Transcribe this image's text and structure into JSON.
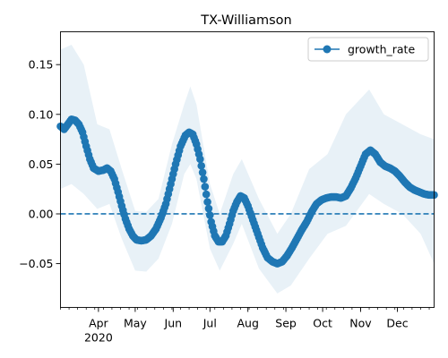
{
  "chart_data": {
    "type": "line",
    "title": "TX-Williamson",
    "xlabel": "",
    "ylabel": "",
    "x_start": "2020-03-01",
    "x_end": "2020-12-31",
    "xlim": [
      "2020-03-01",
      "2020-12-31"
    ],
    "ylim": [
      -0.094,
      0.183
    ],
    "x_ticks": [
      {
        "date": "2020-04-01",
        "label": "Apr",
        "sublabel": "2020"
      },
      {
        "date": "2020-05-01",
        "label": "May",
        "sublabel": ""
      },
      {
        "date": "2020-06-01",
        "label": "Jun",
        "sublabel": ""
      },
      {
        "date": "2020-07-01",
        "label": "Jul",
        "sublabel": ""
      },
      {
        "date": "2020-08-01",
        "label": "Aug",
        "sublabel": ""
      },
      {
        "date": "2020-09-01",
        "label": "Sep",
        "sublabel": ""
      },
      {
        "date": "2020-10-01",
        "label": "Oct",
        "sublabel": ""
      },
      {
        "date": "2020-11-01",
        "label": "Nov",
        "sublabel": ""
      },
      {
        "date": "2020-12-01",
        "label": "Dec",
        "sublabel": ""
      }
    ],
    "y_ticks": [
      {
        "value": 0.15,
        "label": "0.15"
      },
      {
        "value": 0.1,
        "label": "0.10"
      },
      {
        "value": 0.05,
        "label": "0.05"
      },
      {
        "value": 0.0,
        "label": "0.00"
      },
      {
        "value": -0.05,
        "label": "−0.05"
      }
    ],
    "reference_line": {
      "value": 0.0,
      "style": "dashed"
    },
    "legend": {
      "location": "top-right",
      "entries": [
        "growth_rate"
      ]
    },
    "series": [
      {
        "name": "growth_rate",
        "color": "#1f77b4",
        "marker": "circle",
        "points": [
          [
            "2020-03-01",
            0.088
          ],
          [
            "2020-03-04",
            0.085
          ],
          [
            "2020-03-07",
            0.09
          ],
          [
            "2020-03-10",
            0.095
          ],
          [
            "2020-03-13",
            0.094
          ],
          [
            "2020-03-16",
            0.09
          ],
          [
            "2020-03-19",
            0.082
          ],
          [
            "2020-03-22",
            0.068
          ],
          [
            "2020-03-25",
            0.055
          ],
          [
            "2020-03-28",
            0.046
          ],
          [
            "2020-04-01",
            0.043
          ],
          [
            "2020-04-05",
            0.044
          ],
          [
            "2020-04-08",
            0.046
          ],
          [
            "2020-04-11",
            0.043
          ],
          [
            "2020-04-14",
            0.035
          ],
          [
            "2020-04-17",
            0.022
          ],
          [
            "2020-04-20",
            0.008
          ],
          [
            "2020-04-23",
            -0.005
          ],
          [
            "2020-04-26",
            -0.015
          ],
          [
            "2020-04-29",
            -0.022
          ],
          [
            "2020-05-02",
            -0.026
          ],
          [
            "2020-05-06",
            -0.027
          ],
          [
            "2020-05-10",
            -0.026
          ],
          [
            "2020-05-14",
            -0.022
          ],
          [
            "2020-05-18",
            -0.015
          ],
          [
            "2020-05-22",
            -0.004
          ],
          [
            "2020-05-26",
            0.01
          ],
          [
            "2020-05-30",
            0.03
          ],
          [
            "2020-06-03",
            0.05
          ],
          [
            "2020-06-07",
            0.068
          ],
          [
            "2020-06-11",
            0.079
          ],
          [
            "2020-06-14",
            0.082
          ],
          [
            "2020-06-17",
            0.08
          ],
          [
            "2020-06-20",
            0.07
          ],
          [
            "2020-06-23",
            0.055
          ],
          [
            "2020-06-26",
            0.035
          ],
          [
            "2020-06-29",
            0.012
          ],
          [
            "2020-07-02",
            -0.008
          ],
          [
            "2020-07-05",
            -0.022
          ],
          [
            "2020-07-08",
            -0.028
          ],
          [
            "2020-07-11",
            -0.028
          ],
          [
            "2020-07-14",
            -0.022
          ],
          [
            "2020-07-17",
            -0.01
          ],
          [
            "2020-07-20",
            0.003
          ],
          [
            "2020-07-23",
            0.012
          ],
          [
            "2020-07-26",
            0.018
          ],
          [
            "2020-07-29",
            0.016
          ],
          [
            "2020-08-01",
            0.008
          ],
          [
            "2020-08-05",
            -0.006
          ],
          [
            "2020-08-09",
            -0.02
          ],
          [
            "2020-08-13",
            -0.034
          ],
          [
            "2020-08-17",
            -0.044
          ],
          [
            "2020-08-21",
            -0.048
          ],
          [
            "2020-08-25",
            -0.05
          ],
          [
            "2020-08-29",
            -0.048
          ],
          [
            "2020-09-02",
            -0.042
          ],
          [
            "2020-09-06",
            -0.034
          ],
          [
            "2020-09-10",
            -0.025
          ],
          [
            "2020-09-14",
            -0.016
          ],
          [
            "2020-09-18",
            -0.008
          ],
          [
            "2020-09-22",
            0.002
          ],
          [
            "2020-09-26",
            0.01
          ],
          [
            "2020-09-30",
            0.014
          ],
          [
            "2020-10-04",
            0.016
          ],
          [
            "2020-10-08",
            0.017
          ],
          [
            "2020-10-12",
            0.017
          ],
          [
            "2020-10-16",
            0.016
          ],
          [
            "2020-10-20",
            0.018
          ],
          [
            "2020-10-24",
            0.026
          ],
          [
            "2020-10-28",
            0.036
          ],
          [
            "2020-11-01",
            0.048
          ],
          [
            "2020-11-05",
            0.06
          ],
          [
            "2020-11-09",
            0.064
          ],
          [
            "2020-11-13",
            0.06
          ],
          [
            "2020-11-17",
            0.052
          ],
          [
            "2020-11-21",
            0.048
          ],
          [
            "2020-11-25",
            0.046
          ],
          [
            "2020-11-29",
            0.043
          ],
          [
            "2020-12-03",
            0.038
          ],
          [
            "2020-12-07",
            0.032
          ],
          [
            "2020-12-11",
            0.027
          ],
          [
            "2020-12-15",
            0.024
          ],
          [
            "2020-12-19",
            0.022
          ],
          [
            "2020-12-23",
            0.02
          ],
          [
            "2020-12-27",
            0.019
          ],
          [
            "2020-12-31",
            0.019
          ]
        ]
      }
    ],
    "band": {
      "description": "shaded uncertainty interval",
      "color": "#1f77b4",
      "opacity": 0.1,
      "points": [
        [
          "2020-03-01",
          0.025,
          0.165
        ],
        [
          "2020-03-10",
          0.03,
          0.17
        ],
        [
          "2020-03-20",
          0.02,
          0.15
        ],
        [
          "2020-03-31",
          0.005,
          0.09
        ],
        [
          "2020-04-10",
          0.01,
          0.085
        ],
        [
          "2020-04-20",
          -0.025,
          0.045
        ],
        [
          "2020-05-01",
          -0.057,
          0.003
        ],
        [
          "2020-05-10",
          -0.058,
          0.002
        ],
        [
          "2020-05-20",
          -0.045,
          0.015
        ],
        [
          "2020-05-31",
          -0.01,
          0.07
        ],
        [
          "2020-06-10",
          0.04,
          0.11
        ],
        [
          "2020-06-15",
          0.05,
          0.128
        ],
        [
          "2020-06-20",
          0.035,
          0.11
        ],
        [
          "2020-07-01",
          -0.035,
          0.03
        ],
        [
          "2020-07-09",
          -0.057,
          0.0
        ],
        [
          "2020-07-20",
          -0.03,
          0.04
        ],
        [
          "2020-07-27",
          -0.01,
          0.055
        ],
        [
          "2020-08-10",
          -0.055,
          0.015
        ],
        [
          "2020-08-25",
          -0.08,
          -0.02
        ],
        [
          "2020-09-05",
          -0.072,
          0.0
        ],
        [
          "2020-09-20",
          -0.045,
          0.045
        ],
        [
          "2020-10-05",
          -0.02,
          0.06
        ],
        [
          "2020-10-20",
          -0.012,
          0.1
        ],
        [
          "2020-11-08",
          0.02,
          0.125
        ],
        [
          "2020-11-20",
          0.01,
          0.1
        ],
        [
          "2020-12-05",
          0.0,
          0.09
        ],
        [
          "2020-12-20",
          -0.02,
          0.08
        ],
        [
          "2020-12-31",
          -0.05,
          0.075
        ]
      ]
    },
    "grid": false
  }
}
